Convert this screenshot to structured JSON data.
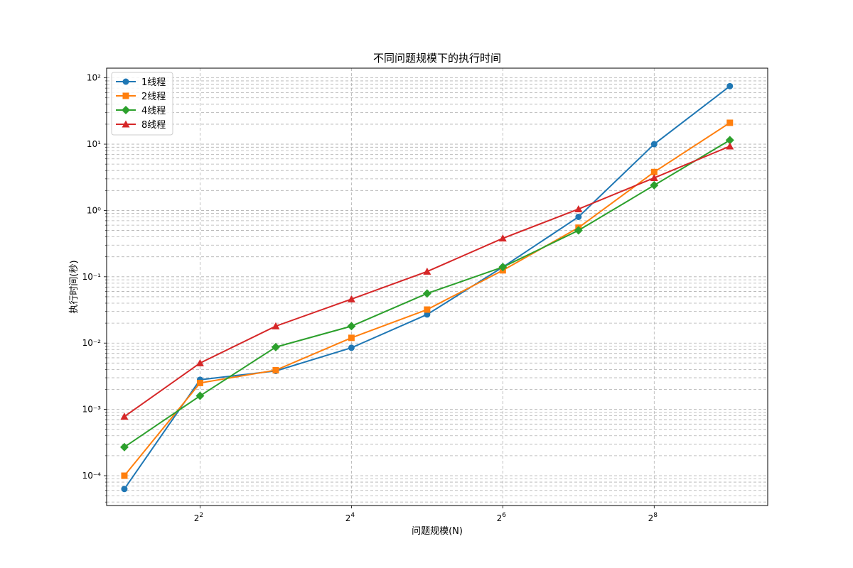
{
  "chart_data": {
    "type": "line",
    "title": "不同问题规模下的执行时间",
    "xlabel": "问题规模(N)",
    "ylabel": "执行时间(秒)",
    "x_scale": "log2",
    "y_scale": "log10",
    "xlim": [
      1.7,
      724
    ],
    "ylim": [
      3.55e-05,
      140
    ],
    "grid": "both",
    "legend_position": "top-left",
    "x_ticks": [
      {
        "value": 4,
        "base": "2",
        "exp": "2"
      },
      {
        "value": 16,
        "base": "2",
        "exp": "4"
      },
      {
        "value": 64,
        "base": "2",
        "exp": "6"
      },
      {
        "value": 256,
        "base": "2",
        "exp": "8"
      }
    ],
    "y_ticks": [
      {
        "value": 100,
        "label": "10²"
      },
      {
        "value": 10,
        "label": "10¹"
      },
      {
        "value": 1,
        "label": "10⁰"
      },
      {
        "value": 0.1,
        "label": "10⁻¹"
      },
      {
        "value": 0.01,
        "label": "10⁻²"
      },
      {
        "value": 0.001,
        "label": "10⁻³"
      },
      {
        "value": 0.0001,
        "label": "10⁻⁴"
      }
    ],
    "x": [
      2,
      4,
      8,
      16,
      32,
      64,
      128,
      256,
      512
    ],
    "series": [
      {
        "name": "1线程",
        "color": "#1f77b4",
        "marker": "circle",
        "values": [
          6.3e-05,
          0.0028,
          0.0038,
          0.0085,
          0.027,
          0.14,
          0.8,
          10,
          75
        ]
      },
      {
        "name": "2线程",
        "color": "#ff7f0e",
        "marker": "square",
        "values": [
          0.0001,
          0.0025,
          0.0039,
          0.012,
          0.032,
          0.125,
          0.55,
          3.8,
          21
        ]
      },
      {
        "name": "4线程",
        "color": "#2ca02c",
        "marker": "diamond",
        "values": [
          0.00027,
          0.0016,
          0.0087,
          0.018,
          0.056,
          0.14,
          0.5,
          2.4,
          11.5
        ]
      },
      {
        "name": "8线程",
        "color": "#d62728",
        "marker": "triangle",
        "values": [
          0.00078,
          0.005,
          0.018,
          0.046,
          0.12,
          0.38,
          1.05,
          3.1,
          9.3
        ]
      }
    ]
  }
}
